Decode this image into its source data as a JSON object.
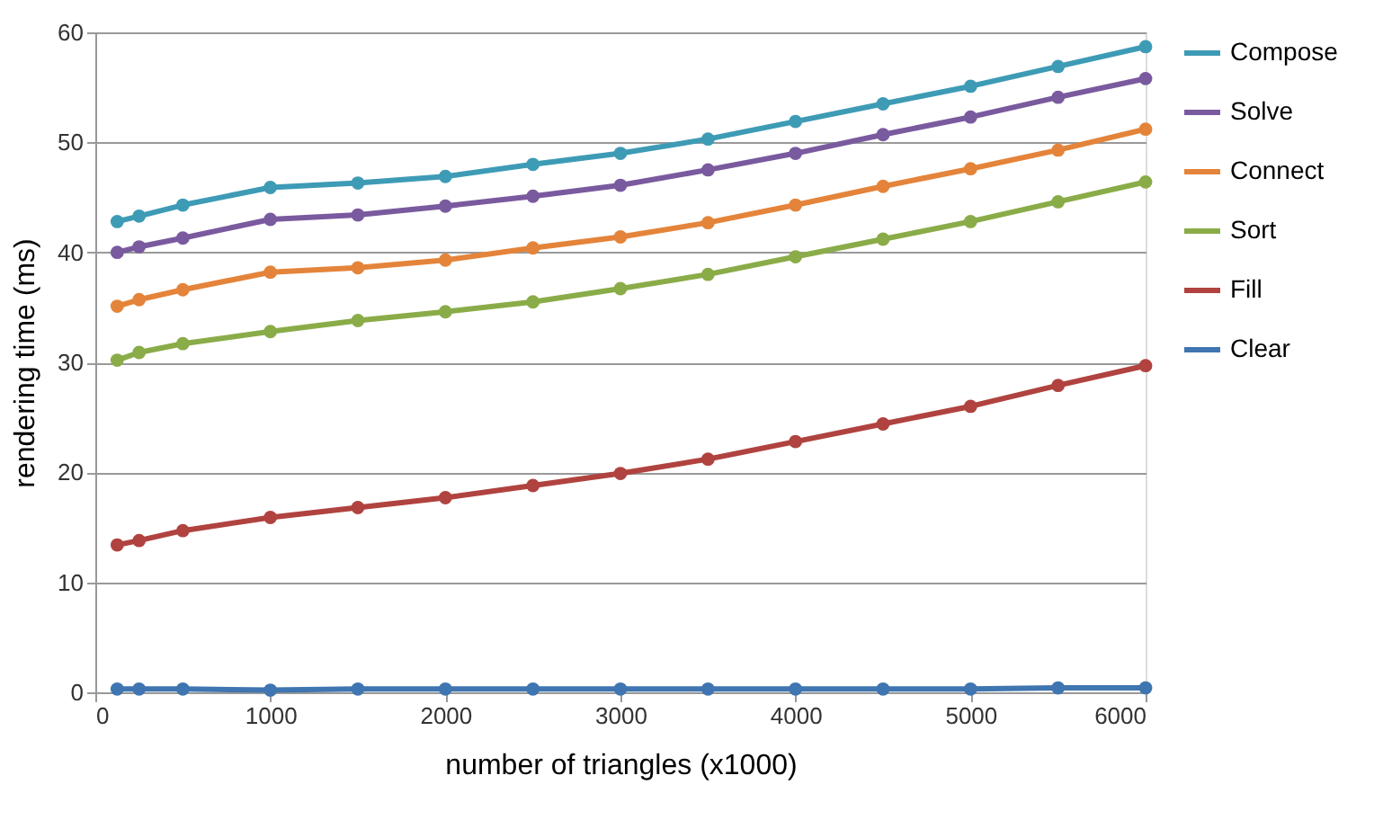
{
  "chart_data": {
    "type": "line",
    "xlabel": "number of triangles (x1000)",
    "ylabel": "rendering time (ms)",
    "x": [
      125,
      250,
      500,
      1000,
      1500,
      2000,
      2500,
      3000,
      3500,
      4000,
      4500,
      5000,
      5500,
      6000
    ],
    "xlim": [
      0,
      6000
    ],
    "xticks": [
      0,
      1000,
      2000,
      3000,
      4000,
      5000,
      6000
    ],
    "ylim": [
      0,
      60
    ],
    "yticks": [
      0,
      10,
      20,
      30,
      40,
      50,
      60
    ],
    "grid": "y",
    "legend": "right",
    "marker": "circle",
    "line_style": "solid",
    "series": [
      {
        "name": "Compose",
        "color": "#3e9bb5",
        "values": [
          42.8,
          43.3,
          44.3,
          45.9,
          46.3,
          46.9,
          48.0,
          49.0,
          50.3,
          51.9,
          53.5,
          55.1,
          56.9,
          58.7
        ]
      },
      {
        "name": "Solve",
        "color": "#7a5a9e",
        "values": [
          40.0,
          40.5,
          41.3,
          43.0,
          43.4,
          44.2,
          45.1,
          46.1,
          47.5,
          49.0,
          50.7,
          52.3,
          54.1,
          55.8
        ]
      },
      {
        "name": "Connect",
        "color": "#e4843a",
        "values": [
          35.1,
          35.7,
          36.6,
          38.2,
          38.6,
          39.3,
          40.4,
          41.4,
          42.7,
          44.3,
          46.0,
          47.6,
          49.3,
          51.2
        ]
      },
      {
        "name": "Sort",
        "color": "#8aac48",
        "values": [
          30.2,
          30.9,
          31.7,
          32.8,
          33.8,
          34.6,
          35.5,
          36.7,
          38.0,
          39.6,
          41.2,
          42.8,
          44.6,
          46.4
        ]
      },
      {
        "name": "Fill",
        "color": "#b0433f",
        "values": [
          13.4,
          13.8,
          14.7,
          15.9,
          16.8,
          17.7,
          18.8,
          19.9,
          21.2,
          22.8,
          24.4,
          26.0,
          27.9,
          29.7
        ]
      },
      {
        "name": "Clear",
        "color": "#3f75b0",
        "values": [
          0.3,
          0.3,
          0.3,
          0.2,
          0.3,
          0.3,
          0.3,
          0.3,
          0.3,
          0.3,
          0.3,
          0.3,
          0.4,
          0.4
        ]
      }
    ]
  }
}
